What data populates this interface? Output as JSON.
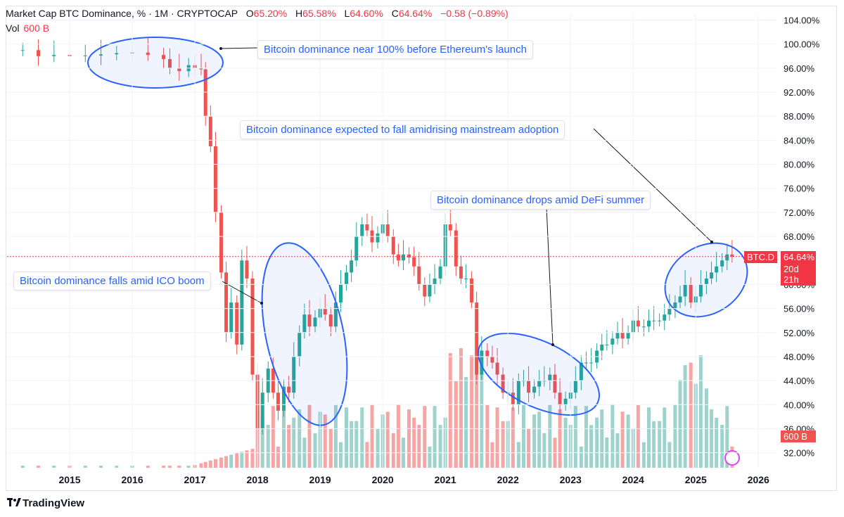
{
  "header": {
    "symbol": "Market Cap BTC Dominance, % · 1M · CRYPTOCAP",
    "o_label": "O",
    "o_value": "65.20%",
    "h_label": "H",
    "h_value": "65.58%",
    "l_label": "L",
    "l_value": "64.60%",
    "c_label": "C",
    "c_value": "64.64%",
    "change": "−0.58 (−0.89%)",
    "vol_label": "Vol",
    "vol_value": "600 B"
  },
  "price_tag": {
    "symbol": "BTC.D",
    "value": "64.64%",
    "countdown": "20d 21h"
  },
  "volume_tag": "600 B",
  "footer": {
    "brand": "TradingView",
    "logo": "tradingview-logo-icon"
  },
  "annotations": [
    {
      "id": "near100",
      "text": "Bitcoin dominance near 100% before Ethereum's launch"
    },
    {
      "id": "expected",
      "text": "Bitcoin dominance expected to fall amidrising mainstream  adoption"
    },
    {
      "id": "defi",
      "text": "Bitcoin dominance drops amid DeFi summer"
    },
    {
      "id": "ico",
      "text": "Bitcoin dominance falls amid ICO boom"
    }
  ],
  "colors": {
    "up": "#26a69a",
    "down": "#ef5350",
    "vol_up": "#9ed3cd",
    "vol_down": "#f5a5a3",
    "accent": "#2962ff",
    "last_price": "#f23645"
  },
  "chart_data": {
    "type": "candlestick",
    "y_axis_ticks": [
      "104.00%",
      "100.00%",
      "96.00%",
      "92.00%",
      "88.00%",
      "84.00%",
      "80.00%",
      "76.00%",
      "72.00%",
      "68.00%",
      "60.00%",
      "56.00%",
      "52.00%",
      "48.00%",
      "44.00%",
      "40.00%",
      "36.00%",
      "32.00%"
    ],
    "x_axis_ticks": [
      "2015",
      "2016",
      "2017",
      "2018",
      "2019",
      "2020",
      "2021",
      "2022",
      "2023",
      "2024",
      "2025",
      "2026"
    ],
    "ylim": [
      29.5,
      105
    ],
    "x_range": [
      2014.0,
      2026.3
    ],
    "series": [
      {
        "name": "BTC.D",
        "points": [
          {
            "t": 2014.25,
            "c": 99
          },
          {
            "t": 2014.5,
            "c": 98
          },
          {
            "t": 2014.75,
            "c": 98.2
          },
          {
            "t": 2015.0,
            "c": 98
          },
          {
            "t": 2015.25,
            "c": 98.1
          },
          {
            "t": 2015.5,
            "c": 98.3
          },
          {
            "t": 2015.75,
            "c": 98.5
          },
          {
            "t": 2016.0,
            "c": 98.6
          },
          {
            "t": 2016.25,
            "c": 98.2
          },
          {
            "t": 2016.5,
            "c": 97.5
          },
          {
            "t": 2016.6,
            "c": 96
          },
          {
            "t": 2016.75,
            "c": 95.5
          },
          {
            "t": 2016.9,
            "c": 96.5
          },
          {
            "t": 2017.0,
            "c": 96
          },
          {
            "t": 2017.1,
            "c": 95.8
          },
          {
            "t": 2017.17,
            "c": 88
          },
          {
            "t": 2017.25,
            "c": 83
          },
          {
            "t": 2017.33,
            "c": 72
          },
          {
            "t": 2017.42,
            "c": 62
          },
          {
            "t": 2017.5,
            "c": 52
          },
          {
            "t": 2017.58,
            "c": 57
          },
          {
            "t": 2017.67,
            "c": 50
          },
          {
            "t": 2017.75,
            "c": 64
          },
          {
            "t": 2017.83,
            "c": 61
          },
          {
            "t": 2017.92,
            "c": 45
          },
          {
            "t": 2018.0,
            "c": 36
          },
          {
            "t": 2018.08,
            "c": 42
          },
          {
            "t": 2018.17,
            "c": 46
          },
          {
            "t": 2018.25,
            "c": 42
          },
          {
            "t": 2018.33,
            "c": 39
          },
          {
            "t": 2018.42,
            "c": 43
          },
          {
            "t": 2018.5,
            "c": 42
          },
          {
            "t": 2018.58,
            "c": 48
          },
          {
            "t": 2018.67,
            "c": 52
          },
          {
            "t": 2018.75,
            "c": 55
          },
          {
            "t": 2018.83,
            "c": 53
          },
          {
            "t": 2018.92,
            "c": 54.5
          },
          {
            "t": 2019.0,
            "c": 56
          },
          {
            "t": 2019.08,
            "c": 55
          },
          {
            "t": 2019.17,
            "c": 53
          },
          {
            "t": 2019.25,
            "c": 57
          },
          {
            "t": 2019.33,
            "c": 60
          },
          {
            "t": 2019.42,
            "c": 62
          },
          {
            "t": 2019.5,
            "c": 64
          },
          {
            "t": 2019.58,
            "c": 68
          },
          {
            "t": 2019.67,
            "c": 70
          },
          {
            "t": 2019.75,
            "c": 69
          },
          {
            "t": 2019.83,
            "c": 67
          },
          {
            "t": 2019.92,
            "c": 68.5
          },
          {
            "t": 2020.0,
            "c": 70
          },
          {
            "t": 2020.08,
            "c": 68
          },
          {
            "t": 2020.17,
            "c": 65
          },
          {
            "t": 2020.25,
            "c": 64
          },
          {
            "t": 2020.33,
            "c": 65
          },
          {
            "t": 2020.42,
            "c": 64.5
          },
          {
            "t": 2020.5,
            "c": 63
          },
          {
            "t": 2020.58,
            "c": 60
          },
          {
            "t": 2020.67,
            "c": 58
          },
          {
            "t": 2020.75,
            "c": 60
          },
          {
            "t": 2020.83,
            "c": 61
          },
          {
            "t": 2020.92,
            "c": 63
          },
          {
            "t": 2021.0,
            "c": 70
          },
          {
            "t": 2021.08,
            "c": 69
          },
          {
            "t": 2021.17,
            "c": 63
          },
          {
            "t": 2021.25,
            "c": 61
          },
          {
            "t": 2021.33,
            "c": 61
          },
          {
            "t": 2021.42,
            "c": 57
          },
          {
            "t": 2021.5,
            "c": 45
          },
          {
            "t": 2021.58,
            "c": 49
          },
          {
            "t": 2021.67,
            "c": 48
          },
          {
            "t": 2021.75,
            "c": 47
          },
          {
            "t": 2021.83,
            "c": 45
          },
          {
            "t": 2021.92,
            "c": 42
          },
          {
            "t": 2022.0,
            "c": 42
          },
          {
            "t": 2022.08,
            "c": 40
          },
          {
            "t": 2022.17,
            "c": 44
          },
          {
            "t": 2022.25,
            "c": 44
          },
          {
            "t": 2022.33,
            "c": 42
          },
          {
            "t": 2022.42,
            "c": 43
          },
          {
            "t": 2022.5,
            "c": 44
          },
          {
            "t": 2022.58,
            "c": 44
          },
          {
            "t": 2022.67,
            "c": 45
          },
          {
            "t": 2022.75,
            "c": 42
          },
          {
            "t": 2022.83,
            "c": 40
          },
          {
            "t": 2022.92,
            "c": 41
          },
          {
            "t": 2023.0,
            "c": 42
          },
          {
            "t": 2023.08,
            "c": 44
          },
          {
            "t": 2023.17,
            "c": 47
          },
          {
            "t": 2023.25,
            "c": 47
          },
          {
            "t": 2023.33,
            "c": 47
          },
          {
            "t": 2023.42,
            "c": 49
          },
          {
            "t": 2023.5,
            "c": 50
          },
          {
            "t": 2023.58,
            "c": 50
          },
          {
            "t": 2023.67,
            "c": 51
          },
          {
            "t": 2023.75,
            "c": 52
          },
          {
            "t": 2023.83,
            "c": 51
          },
          {
            "t": 2023.92,
            "c": 52
          },
          {
            "t": 2024.0,
            "c": 54
          },
          {
            "t": 2024.08,
            "c": 53
          },
          {
            "t": 2024.17,
            "c": 53
          },
          {
            "t": 2024.25,
            "c": 54
          },
          {
            "t": 2024.33,
            "c": 54
          },
          {
            "t": 2024.42,
            "c": 54
          },
          {
            "t": 2024.5,
            "c": 55
          },
          {
            "t": 2024.58,
            "c": 56
          },
          {
            "t": 2024.67,
            "c": 57
          },
          {
            "t": 2024.75,
            "c": 58
          },
          {
            "t": 2024.83,
            "c": 60
          },
          {
            "t": 2024.92,
            "c": 57
          },
          {
            "t": 2025.0,
            "c": 58
          },
          {
            "t": 2025.08,
            "c": 60
          },
          {
            "t": 2025.17,
            "c": 61
          },
          {
            "t": 2025.25,
            "c": 62
          },
          {
            "t": 2025.33,
            "c": 63
          },
          {
            "t": 2025.42,
            "c": 64
          },
          {
            "t": 2025.5,
            "c": 65
          },
          {
            "t": 2025.58,
            "c": 64.64
          }
        ]
      }
    ]
  }
}
